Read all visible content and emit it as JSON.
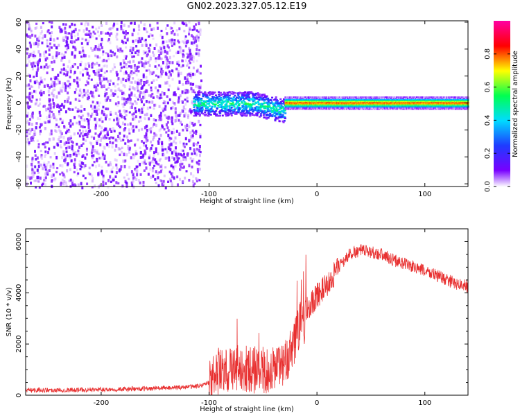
{
  "title": "GN02.2023.327.05.12.E19",
  "chart_data": [
    {
      "type": "heatmap",
      "xlabel": "Height of straight line (km)",
      "ylabel": "Frequency (Hz)",
      "xlim": [
        -270,
        140
      ],
      "ylim": [
        -62,
        61
      ],
      "x_ticks": [
        -200,
        -100,
        0,
        100
      ],
      "y_ticks": [
        -60,
        -40,
        -20,
        0,
        20,
        40,
        60
      ],
      "colorbar": {
        "label": "Normalized spectral amplitude",
        "range": [
          0.0,
          1.0
        ],
        "ticks": [
          0.0,
          0.2,
          0.4,
          0.6,
          0.8
        ],
        "colormap": [
          "#ffffff",
          "#7b00ff",
          "#2040ff",
          "#00e0ff",
          "#00ff40",
          "#ffff00",
          "#ff0000",
          "#ff00a0"
        ]
      },
      "regions": [
        {
          "description": "broadband noise",
          "x": [
            -270,
            -108
          ],
          "y": [
            -62,
            61
          ],
          "amplitude": 0.15
        },
        {
          "description": "signal band",
          "x": [
            -115,
            -30
          ],
          "y": [
            -8,
            10
          ],
          "amplitude": 0.5
        },
        {
          "description": "signal line",
          "x": [
            -30,
            140
          ],
          "y": [
            -1,
            2
          ],
          "amplitude": 0.85
        }
      ]
    },
    {
      "type": "line",
      "xlabel": "Height of straight line (km)",
      "ylabel": "SNR (10 * v/v)",
      "xlim": [
        -270,
        140
      ],
      "ylim": [
        0,
        6500
      ],
      "x_ticks": [
        -200,
        -100,
        0,
        100
      ],
      "y_ticks": [
        0,
        2000,
        4000,
        6000
      ],
      "series": [
        {
          "color": "#e83030",
          "x": [
            -270,
            -240,
            -200,
            -160,
            -130,
            -110,
            -100,
            -95,
            -90,
            -80,
            -70,
            -60,
            -50,
            -40,
            -30,
            -25,
            -20,
            -15,
            -12,
            -10,
            -5,
            0,
            10,
            20,
            30,
            40,
            50,
            60,
            70,
            80,
            90,
            100,
            110,
            120,
            130,
            140
          ],
          "values": [
            200,
            200,
            220,
            250,
            300,
            350,
            500,
            700,
            900,
            1000,
            1100,
            950,
            900,
            1000,
            1200,
            1600,
            2200,
            3000,
            2800,
            3300,
            3600,
            3900,
            4300,
            5000,
            5500,
            5650,
            5600,
            5500,
            5300,
            5150,
            5000,
            4850,
            4700,
            4500,
            4350,
            4250
          ]
        }
      ]
    }
  ]
}
